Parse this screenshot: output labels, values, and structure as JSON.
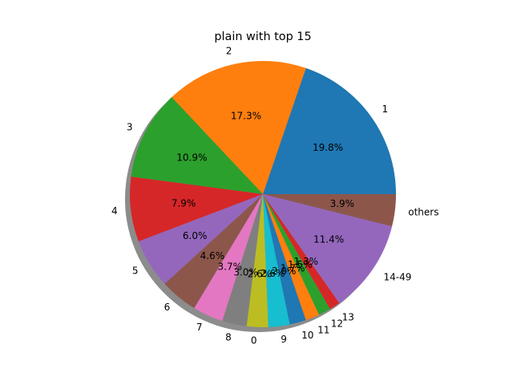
{
  "chart_data": {
    "type": "pie",
    "title": "plain with top 15",
    "shadow": true,
    "start_angle_deg": 0,
    "direction": "counterclockwise",
    "slices": [
      {
        "label": "1",
        "value": 19.8,
        "pct_label": "19.8%",
        "color": "#1f77b4"
      },
      {
        "label": "2",
        "value": 17.3,
        "pct_label": "17.3%",
        "color": "#ff7f0e"
      },
      {
        "label": "3",
        "value": 10.9,
        "pct_label": "10.9%",
        "color": "#2ca02c"
      },
      {
        "label": "4",
        "value": 7.9,
        "pct_label": "7.9%",
        "color": "#d62728"
      },
      {
        "label": "5",
        "value": 6.0,
        "pct_label": "6.0%",
        "color": "#9467bd"
      },
      {
        "label": "6",
        "value": 4.6,
        "pct_label": "4.6%",
        "color": "#8c564b"
      },
      {
        "label": "7",
        "value": 3.7,
        "pct_label": "3.7%",
        "color": "#e377c2"
      },
      {
        "label": "8",
        "value": 3.0,
        "pct_label": "3.0%",
        "color": "#7f7f7f"
      },
      {
        "label": "0",
        "value": 2.6,
        "pct_label": "2.6%",
        "color": "#bcbd22"
      },
      {
        "label": "9",
        "value": 2.6,
        "pct_label": "2.6%",
        "color": "#17becf"
      },
      {
        "label": "10",
        "value": 2.0,
        "pct_label": "2.0%",
        "color": "#1f77b4"
      },
      {
        "label": "11",
        "value": 1.7,
        "pct_label": "1.7%",
        "color": "#ff7f0e"
      },
      {
        "label": "12",
        "value": 1.5,
        "pct_label": "1.5%",
        "color": "#2ca02c"
      },
      {
        "label": "13",
        "value": 1.3,
        "pct_label": "1.3%",
        "color": "#d62728"
      },
      {
        "label": "14-49",
        "value": 11.4,
        "pct_label": "11.4%",
        "color": "#9467bd"
      },
      {
        "label": "others",
        "value": 3.9,
        "pct_label": "3.9%",
        "color": "#8c564b"
      }
    ]
  }
}
